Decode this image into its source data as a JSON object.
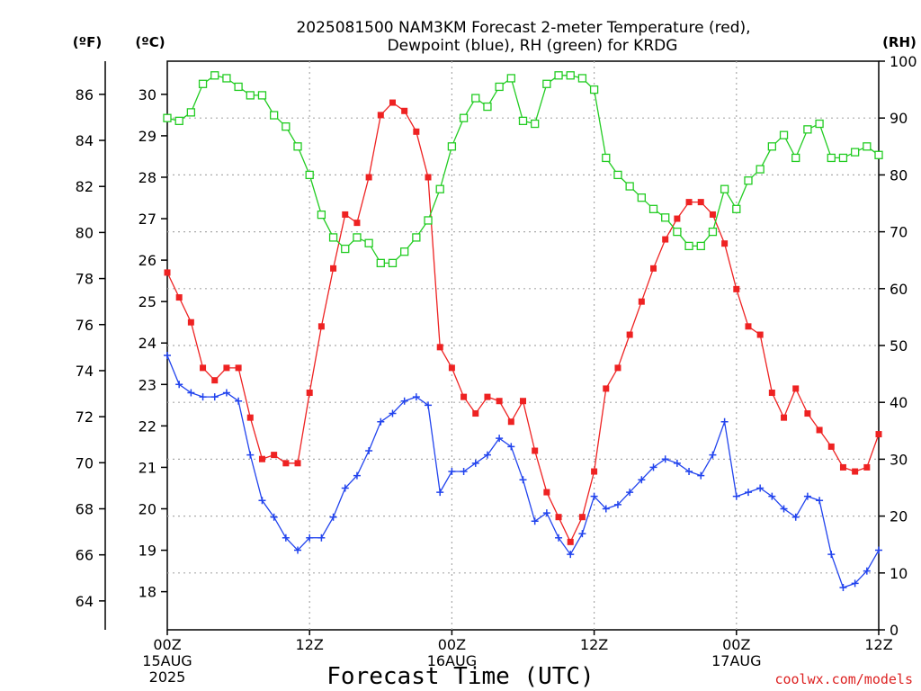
{
  "chart_data": {
    "type": "line",
    "title_line1": "2025081500 NAM3KM Forecast 2-meter Temperature (red),",
    "title_line2": "Dewpoint (blue), RH (green) for KRDG",
    "xlabel": "Forecast Time (UTC)",
    "credit": "coolwx.com/models",
    "left_axis_f_label": "(ºF)",
    "left_axis_c_label": "(ºC)",
    "right_axis_label": "(RH)",
    "x_range_hours": [
      0,
      60
    ],
    "x_ticks": [
      {
        "h": 0,
        "l1": "00Z",
        "l2": "15AUG",
        "l3": "2025"
      },
      {
        "h": 12,
        "l1": "12Z",
        "l2": "",
        "l3": ""
      },
      {
        "h": 24,
        "l1": "00Z",
        "l2": "16AUG",
        "l3": ""
      },
      {
        "h": 36,
        "l1": "12Z",
        "l2": "",
        "l3": ""
      },
      {
        "h": 48,
        "l1": "00Z",
        "l2": "17AUG",
        "l3": ""
      },
      {
        "h": 60,
        "l1": "12Z",
        "l2": "",
        "l3": ""
      }
    ],
    "y_ticks_f": [
      "64",
      "66",
      "68",
      "70",
      "72",
      "74",
      "76",
      "78",
      "80",
      "82",
      "84",
      "86"
    ],
    "y_ticks_c": [
      "18",
      "19",
      "20",
      "21",
      "22",
      "23",
      "24",
      "25",
      "26",
      "27",
      "28",
      "29",
      "30"
    ],
    "y_ticks_rh": [
      "0",
      "10",
      "20",
      "30",
      "40",
      "50",
      "60",
      "70",
      "80",
      "90",
      "100"
    ],
    "ylim_c": [
      17.08,
      30.8
    ],
    "ylim_rh": [
      0,
      100
    ],
    "grid": true,
    "series": [
      {
        "name": "Temperature",
        "unit": "C",
        "color": "#ee2222",
        "marker": "filled-square",
        "values": [
          25.7,
          25.1,
          24.5,
          23.4,
          23.1,
          23.4,
          23.4,
          22.2,
          21.2,
          21.3,
          21.1,
          21.1,
          22.8,
          24.4,
          25.8,
          27.1,
          26.9,
          28.0,
          29.5,
          29.8,
          29.6,
          29.1,
          28.0,
          23.9,
          23.4,
          22.7,
          22.3,
          22.7,
          22.6,
          22.1,
          22.6,
          21.4,
          20.4,
          19.8,
          19.2,
          19.8,
          20.9,
          22.9,
          23.4,
          24.2,
          25.0,
          25.8,
          26.5,
          27.0,
          27.4,
          27.4,
          27.1,
          26.4,
          25.3,
          24.4,
          24.2,
          22.8,
          22.2,
          22.9,
          22.3,
          21.9,
          21.5,
          21.0,
          20.9,
          21.0,
          21.8
        ]
      },
      {
        "name": "Dewpoint",
        "unit": "C",
        "color": "#2244ee",
        "marker": "plus",
        "values": [
          23.7,
          23.0,
          22.8,
          22.7,
          22.7,
          22.8,
          22.6,
          21.3,
          20.2,
          19.8,
          19.3,
          19.0,
          19.3,
          19.3,
          19.8,
          20.5,
          20.8,
          21.4,
          22.1,
          22.3,
          22.6,
          22.7,
          22.5,
          20.4,
          20.9,
          20.9,
          21.1,
          21.3,
          21.7,
          21.5,
          20.7,
          19.7,
          19.9,
          19.3,
          18.9,
          19.4,
          20.3,
          20.0,
          20.1,
          20.4,
          20.7,
          21.0,
          21.2,
          21.1,
          20.9,
          20.8,
          21.3,
          22.1,
          20.3,
          20.4,
          20.5,
          20.3,
          20.0,
          19.8,
          20.3,
          20.2,
          18.9,
          18.1,
          18.2,
          18.5,
          19.0
        ]
      },
      {
        "name": "RH",
        "unit": "%",
        "color": "#22cc22",
        "marker": "open-square",
        "values": [
          90,
          89.5,
          91,
          96,
          97.5,
          97,
          95.5,
          94,
          94,
          90.5,
          88.5,
          85,
          80,
          73,
          69,
          67,
          69,
          68,
          64.5,
          64.5,
          66.5,
          69,
          72,
          77.5,
          85,
          90,
          93.5,
          92,
          95.5,
          97,
          89.5,
          89,
          96,
          97.5,
          97.5,
          97,
          95,
          83,
          80,
          78,
          76,
          74,
          72.5,
          70,
          67.5,
          67.5,
          70,
          77.5,
          74,
          79,
          81,
          85,
          87,
          83,
          88,
          89,
          83,
          83,
          84,
          85,
          83.5
        ]
      }
    ]
  }
}
